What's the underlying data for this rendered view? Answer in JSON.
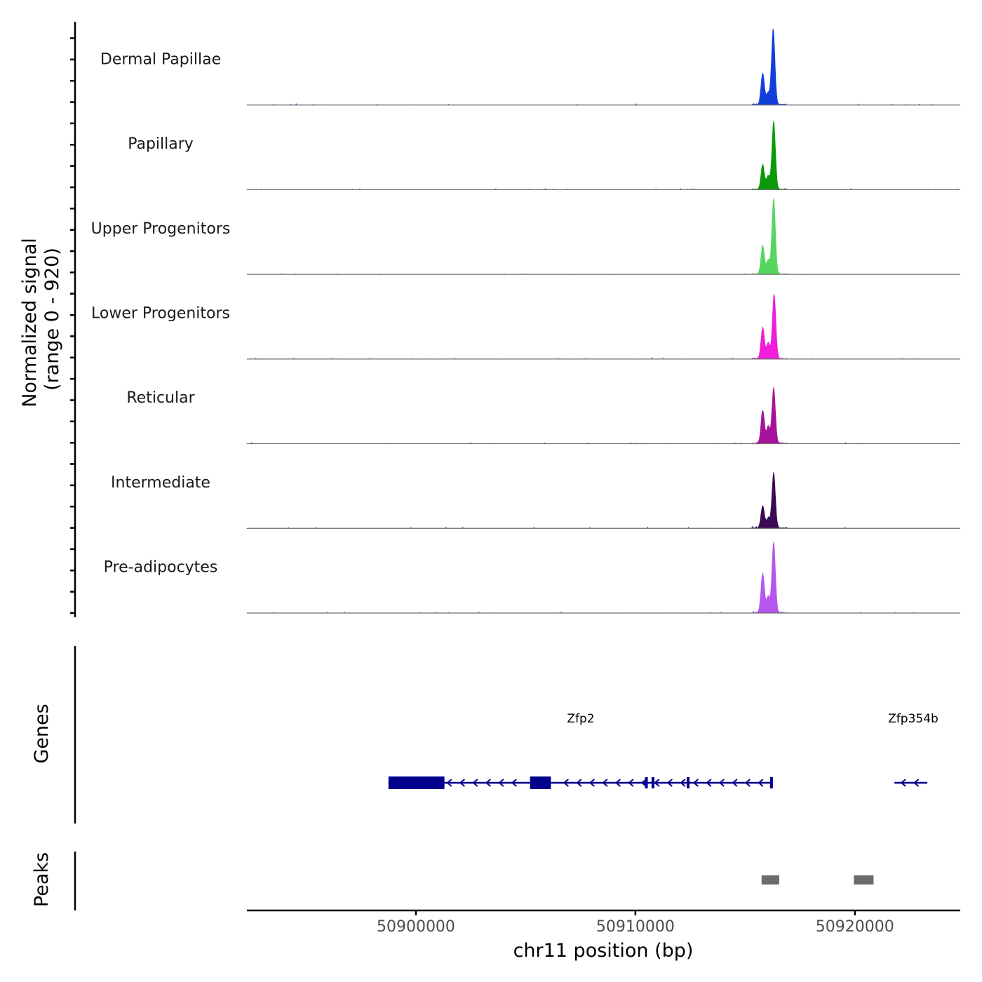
{
  "chart_data": {
    "type": "coverage",
    "chromosome": "chr11",
    "xlabel": "chr11 position (bp)",
    "xlim": [
      50892300,
      50924800
    ],
    "x_ticks": [
      50900000,
      50910000,
      50920000
    ],
    "x_tick_labels": [
      "50900000",
      "50910000",
      "50920000"
    ],
    "coverage": {
      "ylabel_line1": "Normalized signal",
      "ylabel_line2": "(range 0 - 920)",
      "ylim": [
        0,
        920
      ],
      "tracks": [
        {
          "name": "Dermal Papillae",
          "color": "#1140d9",
          "peaks": [
            {
              "x": 50915800,
              "y": 380
            },
            {
              "x": 50916050,
              "y": 140
            },
            {
              "x": 50916280,
              "y": 920
            }
          ]
        },
        {
          "name": "Papillary",
          "color": "#0a9a0a",
          "peaks": [
            {
              "x": 50915800,
              "y": 300
            },
            {
              "x": 50916050,
              "y": 160
            },
            {
              "x": 50916300,
              "y": 830
            }
          ]
        },
        {
          "name": "Upper Progenitors",
          "color": "#55d65e",
          "peaks": [
            {
              "x": 50915800,
              "y": 340
            },
            {
              "x": 50916050,
              "y": 170
            },
            {
              "x": 50916300,
              "y": 920
            }
          ]
        },
        {
          "name": "Lower Progenitors",
          "color": "#f01ed8",
          "peaks": [
            {
              "x": 50915800,
              "y": 380
            },
            {
              "x": 50916050,
              "y": 190
            },
            {
              "x": 50916320,
              "y": 780
            }
          ]
        },
        {
          "name": "Reticular",
          "color": "#a8129a",
          "peaks": [
            {
              "x": 50915800,
              "y": 400
            },
            {
              "x": 50916050,
              "y": 200
            },
            {
              "x": 50916300,
              "y": 670
            }
          ]
        },
        {
          "name": "Intermediate",
          "color": "#3a0a55",
          "peaks": [
            {
              "x": 50915800,
              "y": 270
            },
            {
              "x": 50916050,
              "y": 120
            },
            {
              "x": 50916300,
              "y": 670
            }
          ]
        },
        {
          "name": "Pre-adipocytes",
          "color": "#b556ee",
          "peaks": [
            {
              "x": 50915800,
              "y": 480
            },
            {
              "x": 50916050,
              "y": 190
            },
            {
              "x": 50916300,
              "y": 860
            }
          ]
        }
      ]
    },
    "genes": {
      "ylabel": "Genes",
      "color": "#00008b",
      "items": [
        {
          "name": "Zfp2",
          "start": 50898750,
          "end": 50916200,
          "strand": "-",
          "thick": [
            [
              50898750,
              50901300
            ],
            [
              50905200,
              50906150
            ]
          ],
          "exons": [
            50910500,
            50910800,
            50912400,
            50916200
          ]
        },
        {
          "name": "Zfp354b",
          "start": 50921800,
          "end": 50923300,
          "strand": "-",
          "thick": [],
          "exons": []
        }
      ]
    },
    "peaks": {
      "ylabel": "Peaks",
      "color": "#6b6b6b",
      "regions": [
        [
          50915750,
          50916550
        ],
        [
          50919950,
          50920850
        ]
      ]
    }
  }
}
